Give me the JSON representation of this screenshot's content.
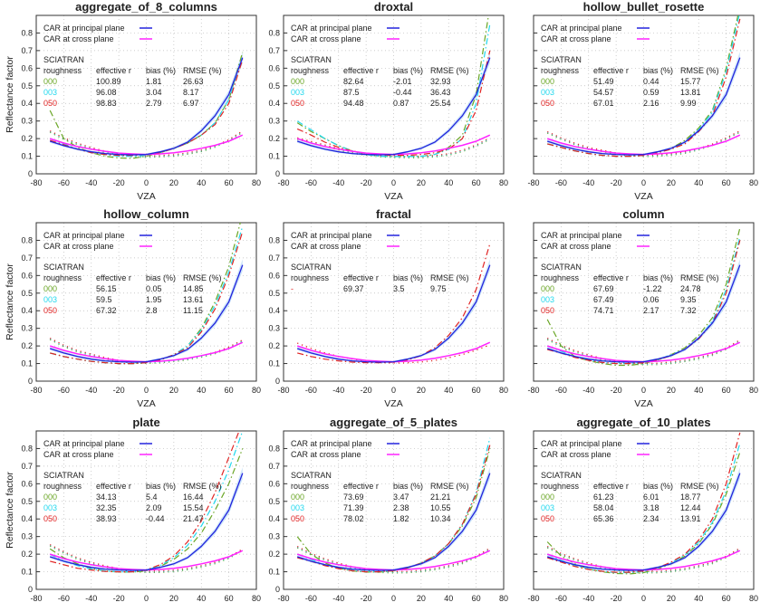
{
  "chart_data": {
    "type": "line",
    "ylabel": "Reflectance factor",
    "xlabel": "VZA",
    "xlim": [
      -80,
      80
    ],
    "ylim": [
      0,
      0.9
    ],
    "xticks": [
      "-80",
      "-60",
      "-40",
      "-20",
      "0",
      "20",
      "40",
      "60",
      "80"
    ],
    "yticks": [
      "0",
      "0.1",
      "0.2",
      "0.3",
      "0.4",
      "0.5",
      "0.6",
      "0.7",
      "0.8"
    ],
    "grid": true,
    "x": [
      -70,
      -60,
      -50,
      -40,
      -30,
      -20,
      -10,
      0,
      10,
      20,
      30,
      40,
      50,
      60,
      70
    ],
    "legend": {
      "principal": "CAR at principal plane",
      "cross": "CAR at cross plane",
      "sciatran": "SCIATRAN",
      "headers": [
        "roughness",
        "effective r",
        "bias (%)",
        "RMSE (%)"
      ]
    },
    "colors": {
      "principal": "#2222dd",
      "cross": "#ff22ff",
      "band": "#aad4f5",
      "000": "#6aa626",
      "003": "#22d8ee",
      "050": "#e02424",
      "-": "#e02424"
    },
    "car_principal": [
      0.185,
      0.16,
      0.14,
      0.125,
      0.115,
      0.11,
      0.108,
      0.11,
      0.125,
      0.145,
      0.18,
      0.245,
      0.33,
      0.45,
      0.66
    ],
    "car_cross": [
      0.2,
      0.175,
      0.155,
      0.14,
      0.128,
      0.118,
      0.113,
      0.11,
      0.113,
      0.12,
      0.13,
      0.145,
      0.162,
      0.185,
      0.22
    ],
    "panels": [
      {
        "title": "aggregate_of_8_columns",
        "rows": [
          {
            "roughness": "000",
            "effective_r": "100.89",
            "bias": "1.81",
            "rmse": "26.63"
          },
          {
            "roughness": "003",
            "effective_r": "96.08",
            "bias": "3.04",
            "rmse": "8.17"
          },
          {
            "roughness": "050",
            "effective_r": "98.83",
            "bias": "2.79",
            "rmse": "6.97"
          }
        ],
        "model_principal": {
          "000": [
            0.36,
            0.2,
            0.15,
            0.12,
            0.1,
            0.09,
            0.088,
            0.1,
            0.12,
            0.145,
            0.175,
            0.22,
            0.29,
            0.42,
            0.69
          ],
          "003": [
            0.2,
            0.17,
            0.14,
            0.12,
            0.11,
            0.1,
            0.1,
            0.105,
            0.12,
            0.145,
            0.175,
            0.22,
            0.29,
            0.42,
            0.67
          ],
          "050": [
            0.19,
            0.165,
            0.14,
            0.12,
            0.11,
            0.105,
            0.105,
            0.11,
            0.12,
            0.145,
            0.175,
            0.22,
            0.28,
            0.4,
            0.65
          ]
        },
        "model_cross": [
          0.24,
          0.2,
          0.17,
          0.145,
          0.125,
          0.11,
          0.1,
          0.097,
          0.1,
          0.105,
          0.115,
          0.13,
          0.155,
          0.19,
          0.24
        ]
      },
      {
        "title": "droxtal",
        "rows": [
          {
            "roughness": "000",
            "effective_r": "82.64",
            "bias": "-2.01",
            "rmse": "32.93"
          },
          {
            "roughness": "003",
            "effective_r": "87.5",
            "bias": "-0.44",
            "rmse": "36.43"
          },
          {
            "roughness": "050",
            "effective_r": "94.48",
            "bias": "0.87",
            "rmse": "25.54"
          }
        ],
        "model_principal": {
          "000": [
            0.29,
            0.24,
            0.2,
            0.16,
            0.13,
            0.11,
            0.1,
            0.098,
            0.098,
            0.1,
            0.11,
            0.15,
            0.22,
            0.45,
            0.95
          ],
          "003": [
            0.3,
            0.25,
            0.2,
            0.16,
            0.13,
            0.11,
            0.1,
            0.098,
            0.098,
            0.1,
            0.11,
            0.14,
            0.2,
            0.4,
            0.85
          ],
          "050": [
            0.255,
            0.22,
            0.18,
            0.15,
            0.13,
            0.115,
            0.108,
            0.105,
            0.105,
            0.11,
            0.12,
            0.14,
            0.2,
            0.36,
            0.7
          ]
        },
        "model_cross": [
          0.2,
          0.18,
          0.16,
          0.14,
          0.12,
          0.11,
          0.1,
          0.097,
          0.095,
          0.095,
          0.1,
          0.11,
          0.13,
          0.16,
          0.2
        ]
      },
      {
        "title": "hollow_bullet_rosette",
        "rows": [
          {
            "roughness": "000",
            "effective_r": "51.49",
            "bias": "0.44",
            "rmse": "15.77"
          },
          {
            "roughness": "003",
            "effective_r": "54.57",
            "bias": "0.59",
            "rmse": "13.81"
          },
          {
            "roughness": "050",
            "effective_r": "67.01",
            "bias": "2.16",
            "rmse": "9.99"
          }
        ],
        "model_principal": {
          "000": [
            0.17,
            0.15,
            0.13,
            0.115,
            0.105,
            0.1,
            0.1,
            0.105,
            0.12,
            0.145,
            0.19,
            0.26,
            0.36,
            0.6,
            0.95
          ],
          "003": [
            0.17,
            0.15,
            0.13,
            0.115,
            0.105,
            0.1,
            0.1,
            0.105,
            0.12,
            0.14,
            0.18,
            0.25,
            0.35,
            0.58,
            0.92
          ],
          "050": [
            0.17,
            0.15,
            0.13,
            0.115,
            0.105,
            0.1,
            0.1,
            0.105,
            0.12,
            0.14,
            0.17,
            0.24,
            0.33,
            0.55,
            0.88
          ]
        },
        "model_cross": [
          0.235,
          0.2,
          0.17,
          0.145,
          0.13,
          0.115,
          0.107,
          0.103,
          0.103,
          0.11,
          0.12,
          0.14,
          0.165,
          0.2,
          0.24
        ]
      },
      {
        "title": "hollow_column",
        "rows": [
          {
            "roughness": "000",
            "effective_r": "56.15",
            "bias": "0.05",
            "rmse": "14.85"
          },
          {
            "roughness": "003",
            "effective_r": "59.5",
            "bias": "1.95",
            "rmse": "13.61"
          },
          {
            "roughness": "050",
            "effective_r": "67.32",
            "bias": "2.8",
            "rmse": "11.15"
          }
        ],
        "model_principal": {
          "000": [
            0.16,
            0.14,
            0.125,
            0.112,
            0.105,
            0.1,
            0.1,
            0.105,
            0.12,
            0.15,
            0.2,
            0.3,
            0.45,
            0.65,
            0.95
          ],
          "003": [
            0.16,
            0.14,
            0.125,
            0.112,
            0.105,
            0.1,
            0.1,
            0.105,
            0.12,
            0.15,
            0.2,
            0.29,
            0.43,
            0.62,
            0.88
          ],
          "050": [
            0.16,
            0.14,
            0.125,
            0.112,
            0.105,
            0.1,
            0.1,
            0.105,
            0.12,
            0.15,
            0.19,
            0.28,
            0.41,
            0.6,
            0.85
          ]
        },
        "model_cross": [
          0.24,
          0.2,
          0.17,
          0.15,
          0.13,
          0.115,
          0.107,
          0.105,
          0.108,
          0.115,
          0.125,
          0.14,
          0.16,
          0.19,
          0.23
        ]
      },
      {
        "title": "fractal",
        "rows": [
          {
            "roughness": "-",
            "effective_r": "69.37",
            "bias": "3.5",
            "rmse": "9.75"
          }
        ],
        "model_principal": {
          "-": [
            0.16,
            0.14,
            0.125,
            0.115,
            0.108,
            0.105,
            0.105,
            0.108,
            0.12,
            0.145,
            0.19,
            0.26,
            0.36,
            0.52,
            0.78
          ]
        },
        "model_cross": [
          0.22,
          0.19,
          0.165,
          0.145,
          0.13,
          0.118,
          0.11,
          0.107,
          0.108,
          0.113,
          0.122,
          0.137,
          0.155,
          0.18,
          0.21
        ]
      },
      {
        "title": "column",
        "rows": [
          {
            "roughness": "000",
            "effective_r": "67.69",
            "bias": "-1.22",
            "rmse": "24.78"
          },
          {
            "roughness": "003",
            "effective_r": "67.49",
            "bias": "0.06",
            "rmse": "9.35"
          },
          {
            "roughness": "050",
            "effective_r": "74.71",
            "bias": "2.17",
            "rmse": "7.32"
          }
        ],
        "model_principal": {
          "000": [
            0.35,
            0.2,
            0.14,
            0.115,
            0.1,
            0.09,
            0.09,
            0.1,
            0.12,
            0.15,
            0.19,
            0.26,
            0.36,
            0.55,
            0.87
          ],
          "003": [
            0.2,
            0.17,
            0.14,
            0.12,
            0.105,
            0.1,
            0.1,
            0.105,
            0.12,
            0.15,
            0.18,
            0.24,
            0.34,
            0.52,
            0.82
          ],
          "050": [
            0.18,
            0.16,
            0.135,
            0.118,
            0.106,
            0.1,
            0.1,
            0.105,
            0.12,
            0.145,
            0.18,
            0.24,
            0.33,
            0.5,
            0.8
          ]
        },
        "model_cross": [
          0.24,
          0.2,
          0.17,
          0.145,
          0.125,
          0.11,
          0.1,
          0.097,
          0.098,
          0.105,
          0.115,
          0.13,
          0.15,
          0.185,
          0.23
        ]
      },
      {
        "title": "plate",
        "rows": [
          {
            "roughness": "000",
            "effective_r": "34.13",
            "bias": "5.4",
            "rmse": "16.44"
          },
          {
            "roughness": "003",
            "effective_r": "32.35",
            "bias": "2.09",
            "rmse": "15.54"
          },
          {
            "roughness": "050",
            "effective_r": "38.93",
            "bias": "-0.44",
            "rmse": "21.47"
          }
        ],
        "model_principal": {
          "000": [
            0.23,
            0.18,
            0.145,
            0.12,
            0.105,
            0.098,
            0.098,
            0.105,
            0.13,
            0.17,
            0.23,
            0.32,
            0.45,
            0.6,
            0.8
          ],
          "003": [
            0.2,
            0.16,
            0.135,
            0.115,
            0.105,
            0.1,
            0.1,
            0.11,
            0.135,
            0.18,
            0.25,
            0.36,
            0.5,
            0.68,
            0.9
          ],
          "050": [
            0.16,
            0.14,
            0.12,
            0.11,
            0.102,
            0.1,
            0.1,
            0.11,
            0.14,
            0.19,
            0.27,
            0.39,
            0.55,
            0.75,
            0.95
          ]
        },
        "model_cross": [
          0.25,
          0.21,
          0.175,
          0.15,
          0.13,
          0.115,
          0.105,
          0.1,
          0.1,
          0.105,
          0.115,
          0.13,
          0.15,
          0.18,
          0.225
        ]
      },
      {
        "title": "aggregate_of_5_plates",
        "rows": [
          {
            "roughness": "000",
            "effective_r": "73.69",
            "bias": "3.47",
            "rmse": "21.21"
          },
          {
            "roughness": "003",
            "effective_r": "71.39",
            "bias": "2.38",
            "rmse": "10.55"
          },
          {
            "roughness": "050",
            "effective_r": "78.02",
            "bias": "1.82",
            "rmse": "10.34"
          }
        ],
        "model_principal": {
          "000": [
            0.3,
            0.2,
            0.15,
            0.12,
            0.105,
            0.098,
            0.098,
            0.105,
            0.12,
            0.15,
            0.19,
            0.26,
            0.36,
            0.52,
            0.8
          ],
          "003": [
            0.2,
            0.17,
            0.14,
            0.12,
            0.108,
            0.1,
            0.1,
            0.107,
            0.12,
            0.15,
            0.19,
            0.26,
            0.37,
            0.55,
            0.86
          ],
          "050": [
            0.18,
            0.16,
            0.135,
            0.118,
            0.106,
            0.1,
            0.1,
            0.107,
            0.12,
            0.15,
            0.19,
            0.26,
            0.37,
            0.54,
            0.82
          ]
        },
        "model_cross": [
          0.24,
          0.2,
          0.17,
          0.145,
          0.125,
          0.11,
          0.1,
          0.097,
          0.098,
          0.105,
          0.115,
          0.13,
          0.15,
          0.185,
          0.23
        ]
      },
      {
        "title": "aggregate_of_10_plates",
        "rows": [
          {
            "roughness": "000",
            "effective_r": "61.23",
            "bias": "6.01",
            "rmse": "18.77"
          },
          {
            "roughness": "003",
            "effective_r": "58.04",
            "bias": "3.18",
            "rmse": "12.44"
          },
          {
            "roughness": "050",
            "effective_r": "65.36",
            "bias": "2.34",
            "rmse": "13.91"
          }
        ],
        "model_principal": {
          "000": [
            0.27,
            0.19,
            0.145,
            0.115,
            0.1,
            0.09,
            0.088,
            0.095,
            0.115,
            0.145,
            0.19,
            0.26,
            0.37,
            0.54,
            0.78
          ],
          "003": [
            0.2,
            0.165,
            0.135,
            0.115,
            0.103,
            0.095,
            0.095,
            0.103,
            0.12,
            0.15,
            0.195,
            0.27,
            0.38,
            0.56,
            0.83
          ],
          "050": [
            0.18,
            0.155,
            0.13,
            0.113,
            0.103,
            0.097,
            0.097,
            0.105,
            0.122,
            0.155,
            0.2,
            0.28,
            0.4,
            0.6,
            0.89
          ]
        },
        "model_cross": [
          0.24,
          0.2,
          0.17,
          0.145,
          0.125,
          0.11,
          0.1,
          0.097,
          0.098,
          0.105,
          0.115,
          0.13,
          0.15,
          0.185,
          0.23
        ]
      }
    ]
  }
}
